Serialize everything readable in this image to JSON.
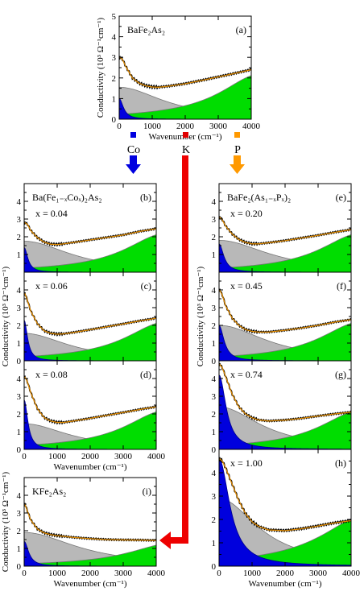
{
  "chart_data": [
    {
      "id": "a",
      "type": "area",
      "title": "BaFe₂As₂",
      "letter": "(a)",
      "x_value": "",
      "xlabel": "Wavenumber (cm⁻¹)",
      "ylabel": "Conductivity (10³ Ω⁻¹cm⁻¹)",
      "xlim": [
        0,
        4000
      ],
      "ylim": [
        0,
        5
      ],
      "xticks": [
        0,
        1000,
        2000,
        3000,
        4000
      ],
      "yticks": [
        0,
        1,
        2,
        3,
        4,
        5
      ],
      "drude_narrow": {
        "height": 1.0,
        "width": 150
      },
      "drude_broad": {
        "height": 1.55,
        "width": 1600
      },
      "lorentz": {
        "center": 4300,
        "width": 1500,
        "height": 2.2
      },
      "data_points": [
        [
          20,
          3.0
        ],
        [
          100,
          2.9
        ],
        [
          200,
          2.55
        ],
        [
          400,
          2.0
        ],
        [
          600,
          1.75
        ],
        [
          800,
          1.62
        ],
        [
          1000,
          1.56
        ],
        [
          1200,
          1.55
        ],
        [
          1500,
          1.6
        ],
        [
          2000,
          1.72
        ],
        [
          2500,
          1.88
        ],
        [
          3000,
          2.05
        ],
        [
          3500,
          2.22
        ],
        [
          4000,
          2.4
        ]
      ]
    },
    {
      "id": "b",
      "type": "area",
      "title": "Ba(Fe₁₋ₓCoₓ)₂As₂",
      "letter": "(b)",
      "x_value": "x = 0.04",
      "xlabel": "",
      "ylabel": "",
      "xlim": [
        0,
        4000
      ],
      "ylim": [
        0,
        5
      ],
      "xticks": [
        0,
        1000,
        2000,
        3000,
        4000
      ],
      "yticks": [
        1,
        2,
        3,
        4
      ],
      "drude_narrow": {
        "height": 1.4,
        "width": 130
      },
      "drude_broad": {
        "height": 1.75,
        "width": 1700
      },
      "lorentz": {
        "center": 4300,
        "width": 1500,
        "height": 2.2
      },
      "data_points": [
        [
          20,
          2.8
        ],
        [
          100,
          2.7
        ],
        [
          200,
          2.35
        ],
        [
          400,
          1.95
        ],
        [
          600,
          1.7
        ],
        [
          800,
          1.58
        ],
        [
          1000,
          1.56
        ],
        [
          1200,
          1.6
        ],
        [
          1500,
          1.68
        ],
        [
          2000,
          1.82
        ],
        [
          2500,
          1.96
        ],
        [
          3000,
          2.1
        ],
        [
          3500,
          2.3
        ],
        [
          4000,
          2.45
        ]
      ]
    },
    {
      "id": "c",
      "type": "area",
      "title": "",
      "letter": "(c)",
      "x_value": "x = 0.06",
      "xlabel": "",
      "ylabel": "Conductivity (10³ Ω⁻¹cm⁻¹)",
      "xlim": [
        0,
        4000
      ],
      "ylim": [
        0,
        5
      ],
      "xticks": [
        0,
        1000,
        2000,
        3000,
        4000
      ],
      "yticks": [
        0,
        1,
        2,
        3,
        4
      ],
      "drude_narrow": {
        "height": 2.3,
        "width": 120
      },
      "drude_broad": {
        "height": 1.55,
        "width": 1600
      },
      "lorentz": {
        "center": 4300,
        "width": 1500,
        "height": 2.2
      },
      "data_points": [
        [
          20,
          3.8
        ],
        [
          100,
          3.4
        ],
        [
          200,
          2.8
        ],
        [
          400,
          2.1
        ],
        [
          600,
          1.7
        ],
        [
          800,
          1.55
        ],
        [
          1000,
          1.5
        ],
        [
          1200,
          1.52
        ],
        [
          1500,
          1.6
        ],
        [
          2000,
          1.75
        ],
        [
          2500,
          1.92
        ],
        [
          3000,
          2.08
        ],
        [
          3500,
          2.25
        ],
        [
          4000,
          2.4
        ]
      ]
    },
    {
      "id": "d",
      "type": "area",
      "title": "",
      "letter": "(d)",
      "x_value": "x = 0.08",
      "xlabel": "Wavenumber (cm⁻¹)",
      "ylabel": "",
      "xlim": [
        0,
        4000
      ],
      "ylim": [
        0,
        5
      ],
      "xticks": [
        0,
        1000,
        2000,
        3000,
        4000
      ],
      "yticks": [
        0,
        1,
        2,
        3,
        4
      ],
      "drude_narrow": {
        "height": 2.8,
        "width": 130
      },
      "drude_broad": {
        "height": 1.45,
        "width": 1600
      },
      "lorentz": {
        "center": 4300,
        "width": 1500,
        "height": 2.2
      },
      "data_points": [
        [
          20,
          4.1
        ],
        [
          100,
          3.8
        ],
        [
          200,
          3.2
        ],
        [
          400,
          2.3
        ],
        [
          600,
          1.8
        ],
        [
          800,
          1.6
        ],
        [
          1000,
          1.52
        ],
        [
          1200,
          1.52
        ],
        [
          1500,
          1.6
        ],
        [
          2000,
          1.75
        ],
        [
          2500,
          1.92
        ],
        [
          3000,
          2.08
        ],
        [
          3500,
          2.25
        ],
        [
          4000,
          2.4
        ]
      ]
    },
    {
      "id": "e",
      "type": "area",
      "title": "BaFe₂(As₁₋ₓPₓ)₂",
      "letter": "(e)",
      "x_value": "x = 0.20",
      "xlabel": "",
      "ylabel": "",
      "xlim": [
        0,
        4000
      ],
      "ylim": [
        0,
        5
      ],
      "xticks": [
        0,
        1000,
        2000,
        3000,
        4000
      ],
      "yticks": [
        1,
        2,
        3,
        4
      ],
      "drude_narrow": {
        "height": 1.6,
        "width": 170
      },
      "drude_broad": {
        "height": 1.8,
        "width": 1800
      },
      "lorentz": {
        "center": 4300,
        "width": 1500,
        "height": 2.2
      },
      "data_points": [
        [
          20,
          3.1
        ],
        [
          100,
          2.95
        ],
        [
          200,
          2.6
        ],
        [
          400,
          2.15
        ],
        [
          600,
          1.85
        ],
        [
          800,
          1.68
        ],
        [
          1000,
          1.6
        ],
        [
          1200,
          1.6
        ],
        [
          1500,
          1.66
        ],
        [
          2000,
          1.78
        ],
        [
          2500,
          1.93
        ],
        [
          3000,
          2.08
        ],
        [
          3500,
          2.25
        ],
        [
          4000,
          2.4
        ]
      ]
    },
    {
      "id": "f",
      "type": "area",
      "title": "",
      "letter": "(f)",
      "x_value": "x = 0.45",
      "xlabel": "",
      "ylabel": "Conductivity (10³ Ω⁻¹cm⁻¹)",
      "xlim": [
        0,
        4000
      ],
      "ylim": [
        0,
        5
      ],
      "xticks": [
        0,
        1000,
        2000,
        3000,
        4000
      ],
      "yticks": [
        0,
        1,
        2,
        3,
        4
      ],
      "drude_narrow": {
        "height": 2.0,
        "width": 180
      },
      "drude_broad": {
        "height": 2.0,
        "width": 1700
      },
      "lorentz": {
        "center": 4300,
        "width": 1500,
        "height": 2.2
      },
      "data_points": [
        [
          20,
          4.0
        ],
        [
          100,
          3.7
        ],
        [
          200,
          3.1
        ],
        [
          400,
          2.4
        ],
        [
          600,
          2.0
        ],
        [
          800,
          1.76
        ],
        [
          1000,
          1.66
        ],
        [
          1200,
          1.62
        ],
        [
          1500,
          1.62
        ],
        [
          2000,
          1.72
        ],
        [
          2500,
          1.85
        ],
        [
          3000,
          2.0
        ],
        [
          3500,
          2.18
        ],
        [
          4000,
          2.32
        ]
      ]
    },
    {
      "id": "g",
      "type": "area",
      "title": "",
      "letter": "(g)",
      "x_value": "x = 0.74",
      "xlabel": "",
      "ylabel": "",
      "xlim": [
        0,
        4000
      ],
      "ylim": [
        0,
        5
      ],
      "xticks": [
        0,
        1000,
        2000,
        3000,
        4000
      ],
      "yticks": [
        0,
        1,
        2,
        3,
        4
      ],
      "drude_narrow": {
        "height": 4.2,
        "width": 250
      },
      "drude_broad": {
        "height": 2.4,
        "width": 1500
      },
      "lorentz": {
        "center": 4300,
        "width": 1500,
        "height": 2.2
      },
      "data_points": [
        [
          20,
          4.8
        ],
        [
          100,
          4.6
        ],
        [
          200,
          4.1
        ],
        [
          400,
          3.1
        ],
        [
          600,
          2.4
        ],
        [
          800,
          2.0
        ],
        [
          1000,
          1.78
        ],
        [
          1200,
          1.66
        ],
        [
          1500,
          1.6
        ],
        [
          2000,
          1.65
        ],
        [
          2500,
          1.75
        ],
        [
          3000,
          1.88
        ],
        [
          3500,
          2.0
        ],
        [
          4000,
          2.1
        ]
      ]
    },
    {
      "id": "h",
      "type": "area",
      "title": "",
      "letter": "(h)",
      "x_value": "x = 1.00",
      "xlabel": "Wavenumber (cm⁻¹)",
      "ylabel": "",
      "xlim": [
        0,
        4000
      ],
      "ylim": [
        0,
        5
      ],
      "xticks": [
        0,
        1000,
        2000,
        3000,
        4000
      ],
      "yticks": [
        0,
        1,
        2,
        3,
        4
      ],
      "drude_narrow": {
        "height": 4.6,
        "width": 380
      },
      "drude_broad": {
        "height": 2.9,
        "width": 1400
      },
      "lorentz": {
        "center": 4500,
        "width": 1700,
        "height": 2.2
      },
      "data_points": [
        [
          20,
          4.6
        ],
        [
          100,
          4.5
        ],
        [
          200,
          4.2
        ],
        [
          400,
          3.5
        ],
        [
          600,
          2.8
        ],
        [
          800,
          2.25
        ],
        [
          1000,
          1.9
        ],
        [
          1200,
          1.7
        ],
        [
          1500,
          1.55
        ],
        [
          2000,
          1.52
        ],
        [
          2500,
          1.6
        ],
        [
          3000,
          1.72
        ],
        [
          3500,
          1.85
        ],
        [
          4000,
          1.95
        ]
      ]
    },
    {
      "id": "i",
      "type": "area",
      "title": "KFe₂As₂",
      "letter": "(i)",
      "x_value": "",
      "xlabel": "Wavenumber (cm⁻¹)",
      "ylabel": "Conductivity (10³ Ω⁻¹cm⁻¹)",
      "xlim": [
        0,
        4000
      ],
      "ylim": [
        0,
        5
      ],
      "xticks": [
        0,
        1000,
        2000,
        3000,
        4000
      ],
      "yticks": [
        0,
        1,
        2,
        3,
        4
      ],
      "drude_narrow": {
        "height": 1.4,
        "width": 160
      },
      "drude_broad": {
        "height": 1.9,
        "width": 1900
      },
      "lorentz": {
        "center": 4500,
        "width": 1600,
        "height": 1.3
      },
      "data_points": [
        [
          20,
          3.5
        ],
        [
          100,
          3.1
        ],
        [
          200,
          2.6
        ],
        [
          400,
          2.1
        ],
        [
          600,
          1.88
        ],
        [
          800,
          1.78
        ],
        [
          1000,
          1.72
        ],
        [
          1200,
          1.68
        ],
        [
          1500,
          1.62
        ],
        [
          2000,
          1.55
        ],
        [
          2500,
          1.5
        ],
        [
          3000,
          1.48
        ],
        [
          3500,
          1.47
        ],
        [
          4000,
          1.45
        ]
      ]
    }
  ],
  "dopants": [
    {
      "label": "Co",
      "color": "#0000e0"
    },
    {
      "label": "K",
      "color": "#e00000"
    },
    {
      "label": "P",
      "color": "#ff9900"
    }
  ],
  "colors": {
    "drude_narrow": "#0000dd",
    "drude_broad": "#b8b8b8",
    "lorentz": "#00dd00",
    "fit": "#e08a00",
    "data": "#000000"
  }
}
